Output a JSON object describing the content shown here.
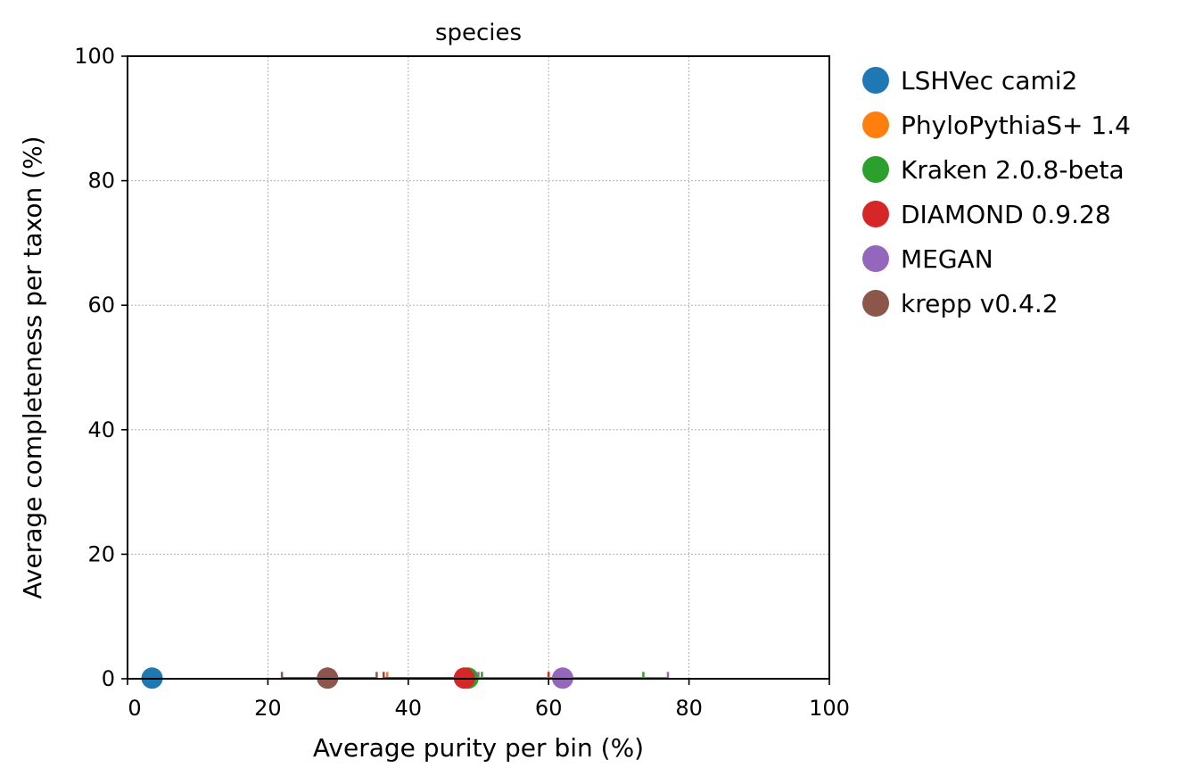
{
  "chart_data": {
    "type": "scatter",
    "title": "species",
    "xlabel": "Average purity per bin (%)",
    "ylabel": "Average completeness per taxon (%)",
    "xlim": [
      0,
      100
    ],
    "ylim": [
      0,
      100
    ],
    "x_ticks": [
      "0",
      "20",
      "40",
      "60",
      "80",
      "100"
    ],
    "y_ticks": [
      "0",
      "20",
      "40",
      "60",
      "80",
      "100"
    ],
    "grid": true,
    "legend_position": "outside-right",
    "series": [
      {
        "name": "LSHVec cami2",
        "color": "#1f77b4",
        "x": 3.5,
        "y": 0.1,
        "x_err": [
          3.4,
          3.6
        ]
      },
      {
        "name": "PhyloPythiaS+ 1.4",
        "color": "#ff7f0e",
        "x": 48.5,
        "y": 0.1,
        "x_err": [
          37.0,
          60.0
        ]
      },
      {
        "name": "Kraken 2.0.8-beta",
        "color": "#2ca02c",
        "x": 48.5,
        "y": 0.1,
        "x_err": [
          50.5,
          73.5
        ]
      },
      {
        "name": "DIAMOND 0.9.28",
        "color": "#d62728",
        "x": 48.0,
        "y": 0.1,
        "x_err": [
          36.5,
          60.0
        ]
      },
      {
        "name": "MEGAN",
        "color": "#9467bd",
        "x": 62.0,
        "y": 0.1,
        "x_err": [
          50.0,
          77.0
        ]
      },
      {
        "name": "krepp v0.4.2",
        "color": "#8c564b",
        "x": 28.5,
        "y": 0.1,
        "x_err": [
          22.0,
          35.5
        ]
      }
    ]
  }
}
